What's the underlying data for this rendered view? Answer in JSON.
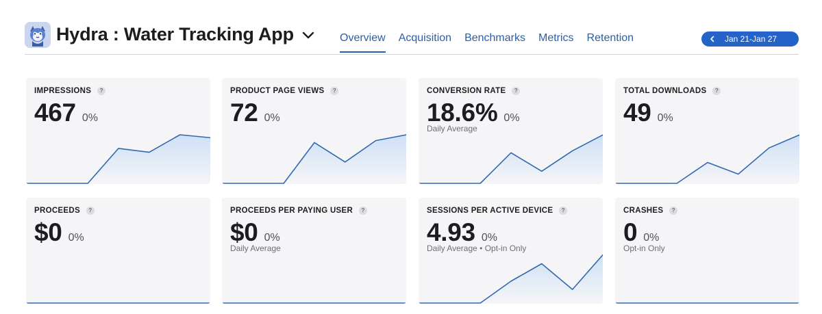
{
  "app": {
    "title": "Hydra : Water Tracking App",
    "icon": "app-mascot-icon"
  },
  "tabs": [
    {
      "label": "Overview",
      "active": true
    },
    {
      "label": "Acquisition",
      "active": false
    },
    {
      "label": "Benchmarks",
      "active": false
    },
    {
      "label": "Metrics",
      "active": false
    },
    {
      "label": "Retention",
      "active": false
    }
  ],
  "date_range": {
    "label": "Jan 21-Jan 27"
  },
  "colors": {
    "accent": "#2463c7",
    "tab_text": "#2a5fa8",
    "line": "#3068b0",
    "fill": "#cfe0f6",
    "card_bg": "#f5f5f7"
  },
  "cards": [
    {
      "title": "IMPRESSIONS",
      "help": "?",
      "value": "467",
      "change": "0%",
      "sub": "",
      "trend": [
        0,
        0,
        0,
        0.72,
        0.64,
        1.0,
        0.94
      ]
    },
    {
      "title": "PRODUCT PAGE VIEWS",
      "help": "?",
      "value": "72",
      "change": "0%",
      "sub": "",
      "trend": [
        0,
        0,
        0,
        0.84,
        0.44,
        0.88,
        1.0
      ]
    },
    {
      "title": "CONVERSION RATE",
      "help": "?",
      "value": "18.6%",
      "change": "0%",
      "sub": "Daily Average",
      "trend": [
        0,
        0,
        0,
        0.63,
        0.25,
        0.67,
        1.0
      ]
    },
    {
      "title": "TOTAL DOWNLOADS",
      "help": "?",
      "value": "49",
      "change": "0%",
      "sub": "",
      "trend": [
        0,
        0,
        0,
        0.43,
        0.19,
        0.73,
        1.0
      ]
    },
    {
      "title": "PROCEEDS",
      "help": "?",
      "value": "$0",
      "change": "0%",
      "sub": "",
      "trend": [
        0,
        0,
        0,
        0,
        0,
        0,
        0
      ]
    },
    {
      "title": "PROCEEDS PER PAYING USER",
      "help": "?",
      "value": "$0",
      "change": "0%",
      "sub": "Daily Average",
      "trend": [
        0,
        0,
        0,
        0,
        0,
        0,
        0
      ]
    },
    {
      "title": "SESSIONS PER ACTIVE DEVICE",
      "help": "?",
      "value": "4.93",
      "change": "0%",
      "sub": "Daily Average  •  Opt-in Only",
      "trend": [
        0,
        0,
        0,
        0.45,
        0.81,
        0.28,
        1.0
      ]
    },
    {
      "title": "CRASHES",
      "help": "?",
      "value": "0",
      "change": "0%",
      "sub": "Opt-in Only",
      "trend": [
        0,
        0,
        0,
        0,
        0,
        0,
        0
      ]
    }
  ]
}
